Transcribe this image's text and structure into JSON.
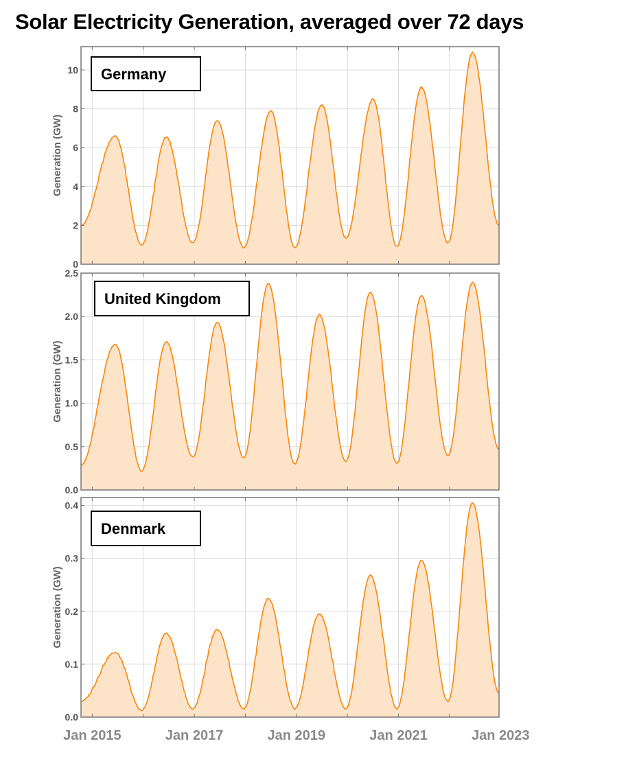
{
  "title": "Solar Electricity Generation, averaged over 72 days",
  "colors": {
    "line": "#f5870f",
    "fill": "#fde3c8",
    "grid": "#dcdcdc",
    "frame": "#777777"
  },
  "chart_data": [
    {
      "type": "area",
      "label": "Germany",
      "ylabel": "Generation (GW)",
      "ylim": [
        0,
        11.2
      ],
      "yticks": [
        "0",
        "2",
        "4",
        "6",
        "8",
        "10"
      ],
      "ytick_values": [
        0,
        2,
        4,
        6,
        8,
        10
      ],
      "xlim": [
        2014.78,
        2022.97
      ],
      "grid": true,
      "peaks": [
        {
          "date": 2015.45,
          "value": 6.6
        },
        {
          "date": 2016.45,
          "value": 6.55
        },
        {
          "date": 2017.45,
          "value": 7.4
        },
        {
          "date": 2018.5,
          "value": 7.9
        },
        {
          "date": 2019.5,
          "value": 8.2
        },
        {
          "date": 2020.5,
          "value": 8.5
        },
        {
          "date": 2021.45,
          "value": 9.1
        },
        {
          "date": 2022.45,
          "value": 10.9
        }
      ],
      "troughs": [
        {
          "date": 2014.78,
          "value": 2.0
        },
        {
          "date": 2015.97,
          "value": 1.0
        },
        {
          "date": 2016.97,
          "value": 1.1
        },
        {
          "date": 2017.97,
          "value": 0.85
        },
        {
          "date": 2018.97,
          "value": 0.85
        },
        {
          "date": 2019.97,
          "value": 1.35
        },
        {
          "date": 2020.97,
          "value": 0.9
        },
        {
          "date": 2021.97,
          "value": 1.1
        },
        {
          "date": 2022.97,
          "value": 2.0
        }
      ]
    },
    {
      "type": "area",
      "label": "United Kingdom",
      "ylabel": "Generation (GW)",
      "ylim": [
        0,
        2.5
      ],
      "yticks": [
        "0.0",
        "0.5",
        "1.0",
        "1.5",
        "2.0",
        "2.5"
      ],
      "ytick_values": [
        0,
        0.5,
        1.0,
        1.5,
        2.0,
        2.5
      ],
      "xlim": [
        2014.78,
        2022.97
      ],
      "grid": true,
      "peaks": [
        {
          "date": 2015.45,
          "value": 1.68
        },
        {
          "date": 2016.45,
          "value": 1.71
        },
        {
          "date": 2017.45,
          "value": 1.93
        },
        {
          "date": 2018.45,
          "value": 2.38
        },
        {
          "date": 2019.45,
          "value": 2.02
        },
        {
          "date": 2020.45,
          "value": 2.28
        },
        {
          "date": 2021.45,
          "value": 2.24
        },
        {
          "date": 2022.45,
          "value": 2.39
        }
      ],
      "troughs": [
        {
          "date": 2014.78,
          "value": 0.29
        },
        {
          "date": 2015.97,
          "value": 0.22
        },
        {
          "date": 2016.97,
          "value": 0.38
        },
        {
          "date": 2017.97,
          "value": 0.37
        },
        {
          "date": 2018.97,
          "value": 0.3
        },
        {
          "date": 2019.97,
          "value": 0.33
        },
        {
          "date": 2020.97,
          "value": 0.31
        },
        {
          "date": 2021.97,
          "value": 0.4
        },
        {
          "date": 2022.97,
          "value": 0.47
        }
      ]
    },
    {
      "type": "area",
      "label": "Denmark",
      "ylabel": "Generation (GW)",
      "ylim": [
        0,
        0.415
      ],
      "yticks": [
        "0.0",
        "0.1",
        "0.2",
        "0.3",
        "0.4"
      ],
      "ytick_values": [
        0,
        0.1,
        0.2,
        0.3,
        0.4
      ],
      "xlim": [
        2014.78,
        2022.97
      ],
      "grid": true,
      "peaks": [
        {
          "date": 2015.45,
          "value": 0.122
        },
        {
          "date": 2016.45,
          "value": 0.158
        },
        {
          "date": 2017.45,
          "value": 0.165
        },
        {
          "date": 2018.45,
          "value": 0.224
        },
        {
          "date": 2019.45,
          "value": 0.195
        },
        {
          "date": 2020.45,
          "value": 0.268
        },
        {
          "date": 2021.45,
          "value": 0.296
        },
        {
          "date": 2022.45,
          "value": 0.405
        }
      ],
      "troughs": [
        {
          "date": 2014.78,
          "value": 0.03
        },
        {
          "date": 2015.97,
          "value": 0.013
        },
        {
          "date": 2016.97,
          "value": 0.016
        },
        {
          "date": 2017.97,
          "value": 0.016
        },
        {
          "date": 2018.97,
          "value": 0.016
        },
        {
          "date": 2019.97,
          "value": 0.016
        },
        {
          "date": 2020.97,
          "value": 0.016
        },
        {
          "date": 2021.97,
          "value": 0.03
        },
        {
          "date": 2022.97,
          "value": 0.045
        }
      ]
    }
  ],
  "x_axis": {
    "ticks": [
      "Jan 2015",
      "Jan 2017",
      "Jan 2019",
      "Jan 2021",
      "Jan 2023"
    ],
    "tick_dates": [
      2015,
      2017,
      2019,
      2021,
      2023
    ],
    "minor_tick_dates": [
      2016,
      2018,
      2020,
      2022
    ]
  }
}
